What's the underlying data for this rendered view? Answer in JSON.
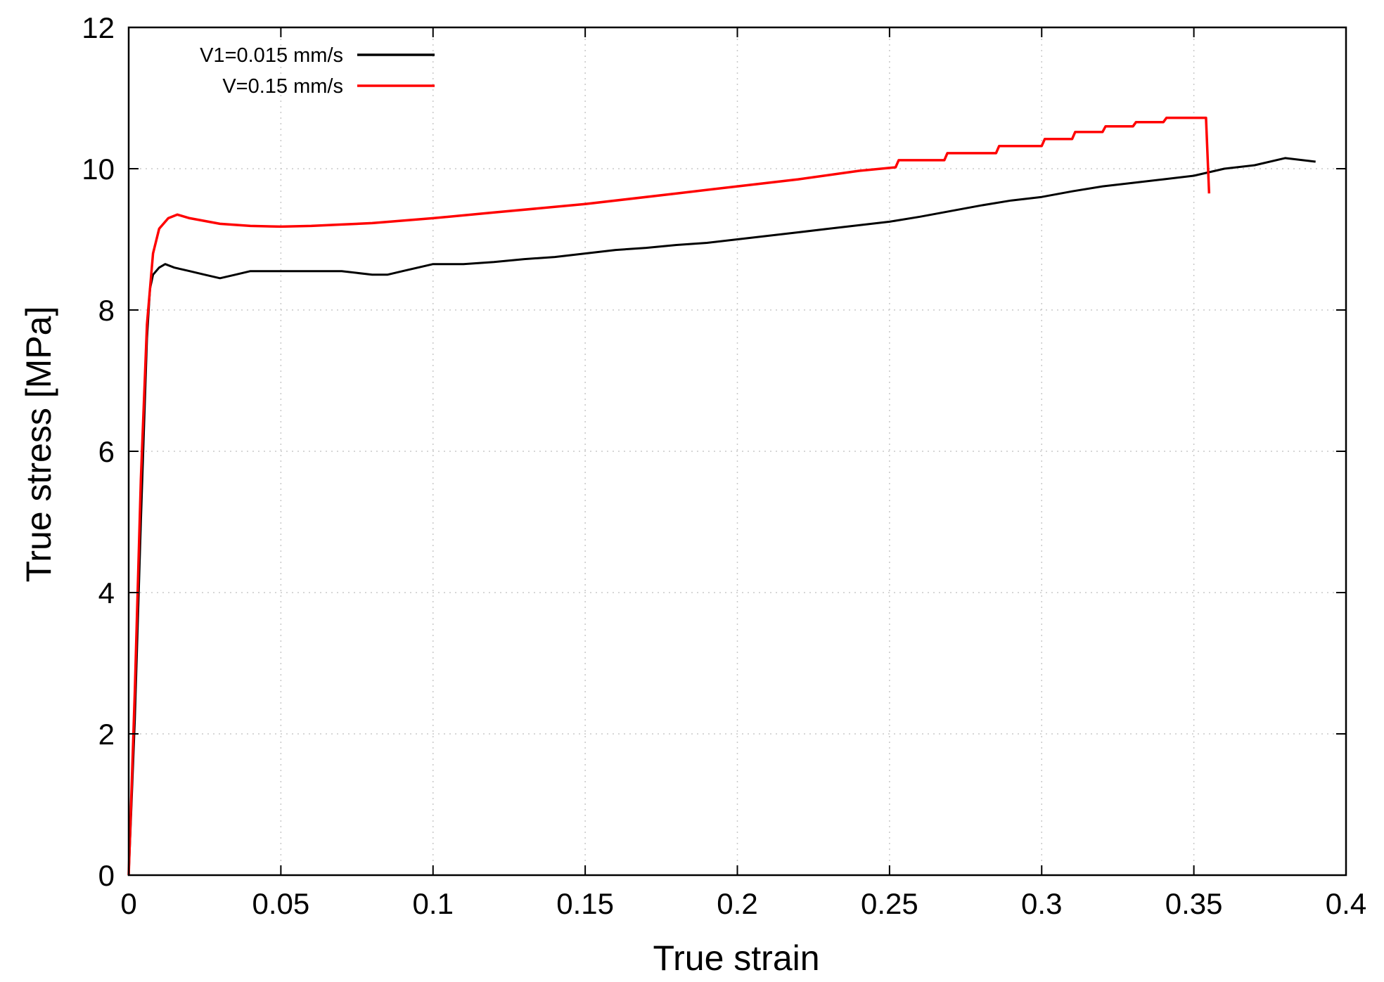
{
  "chart_data": {
    "type": "line",
    "xlabel": "True strain",
    "ylabel": "True stress [MPa]",
    "xlim": [
      0,
      0.4
    ],
    "ylim": [
      0,
      12
    ],
    "xticks": [
      0,
      0.05,
      0.1,
      0.15,
      0.2,
      0.25,
      0.3,
      0.35,
      0.4
    ],
    "xtick_labels": [
      "0",
      "0.05",
      "0.1",
      "0.15",
      "0.2",
      "0.25",
      "0.3",
      "0.35",
      "0.4"
    ],
    "yticks": [
      0,
      2,
      4,
      6,
      8,
      10,
      12
    ],
    "ytick_labels": [
      "0",
      "2",
      "4",
      "6",
      "8",
      "10",
      "12"
    ],
    "grid": true,
    "legend_position": "top-left",
    "series": [
      {
        "name": "V1=0.015 mm/s",
        "color": "#000000",
        "x": [
          0,
          0.002,
          0.004,
          0.006,
          0.007,
          0.008,
          0.01,
          0.012,
          0.015,
          0.02,
          0.025,
          0.03,
          0.035,
          0.04,
          0.05,
          0.06,
          0.07,
          0.08,
          0.085,
          0.09,
          0.1,
          0.11,
          0.12,
          0.13,
          0.14,
          0.15,
          0.16,
          0.17,
          0.18,
          0.19,
          0.2,
          0.21,
          0.22,
          0.23,
          0.24,
          0.25,
          0.26,
          0.27,
          0.28,
          0.29,
          0.3,
          0.31,
          0.32,
          0.33,
          0.34,
          0.35,
          0.36,
          0.37,
          0.38,
          0.39
        ],
        "y": [
          0,
          2.2,
          5.0,
          7.6,
          8.3,
          8.5,
          8.6,
          8.65,
          8.6,
          8.55,
          8.5,
          8.45,
          8.5,
          8.55,
          8.55,
          8.55,
          8.55,
          8.5,
          8.5,
          8.55,
          8.65,
          8.65,
          8.68,
          8.72,
          8.75,
          8.8,
          8.85,
          8.88,
          8.92,
          8.95,
          9.0,
          9.05,
          9.1,
          9.15,
          9.2,
          9.25,
          9.32,
          9.4,
          9.48,
          9.55,
          9.6,
          9.68,
          9.75,
          9.8,
          9.85,
          9.9,
          10.0,
          10.05,
          10.15,
          10.1
        ]
      },
      {
        "name": "V=0.15 mm/s",
        "color": "#ff0000",
        "x": [
          0,
          0.002,
          0.004,
          0.006,
          0.008,
          0.01,
          0.013,
          0.016,
          0.02,
          0.03,
          0.04,
          0.05,
          0.06,
          0.07,
          0.08,
          0.1,
          0.12,
          0.15,
          0.18,
          0.2,
          0.22,
          0.24,
          0.252,
          0.253,
          0.268,
          0.269,
          0.285,
          0.286,
          0.3,
          0.301,
          0.31,
          0.311,
          0.32,
          0.321,
          0.33,
          0.331,
          0.34,
          0.341,
          0.354,
          0.355
        ],
        "y": [
          0,
          2.6,
          5.6,
          7.8,
          8.8,
          9.15,
          9.3,
          9.35,
          9.3,
          9.22,
          9.19,
          9.18,
          9.19,
          9.21,
          9.23,
          9.3,
          9.38,
          9.5,
          9.65,
          9.75,
          9.85,
          9.97,
          10.02,
          10.12,
          10.12,
          10.22,
          10.22,
          10.32,
          10.32,
          10.42,
          10.42,
          10.52,
          10.52,
          10.6,
          10.6,
          10.66,
          10.66,
          10.72,
          10.72,
          9.65
        ]
      }
    ]
  }
}
